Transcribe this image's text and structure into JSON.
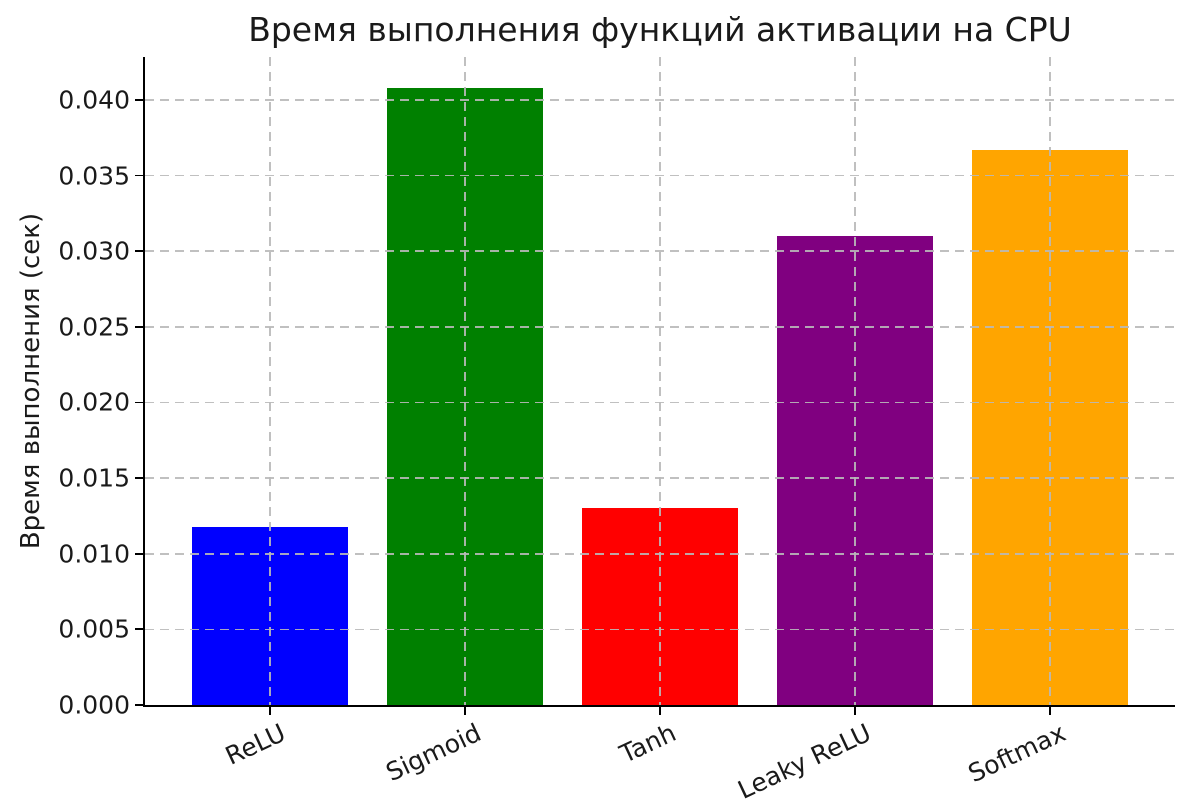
{
  "chart_data": {
    "type": "bar",
    "title": "Время выполнения функций активации на CPU",
    "ylabel": "Время выполнения (сек)",
    "xlabel": "",
    "categories": [
      "ReLU",
      "Sigmoid",
      "Tanh",
      "Leaky ReLU",
      "Softmax"
    ],
    "values": [
      0.0118,
      0.0408,
      0.013,
      0.031,
      0.0367
    ],
    "colors": [
      "#0000ff",
      "#008000",
      "#ff0000",
      "#800080",
      "#ffa500"
    ],
    "ylim": [
      0,
      0.04284
    ],
    "yticks": [
      0,
      0.005,
      0.01,
      0.015,
      0.02,
      0.025,
      0.03,
      0.035,
      0.04
    ],
    "ytick_labels": [
      "0.000",
      "0.005",
      "0.010",
      "0.015",
      "0.020",
      "0.025",
      "0.030",
      "0.035",
      "0.040"
    ],
    "grid": true,
    "grid_linestyle": "dashed",
    "legend_position": "none",
    "bar_width_fraction": 0.8,
    "xtick_rotation_deg": 25
  }
}
